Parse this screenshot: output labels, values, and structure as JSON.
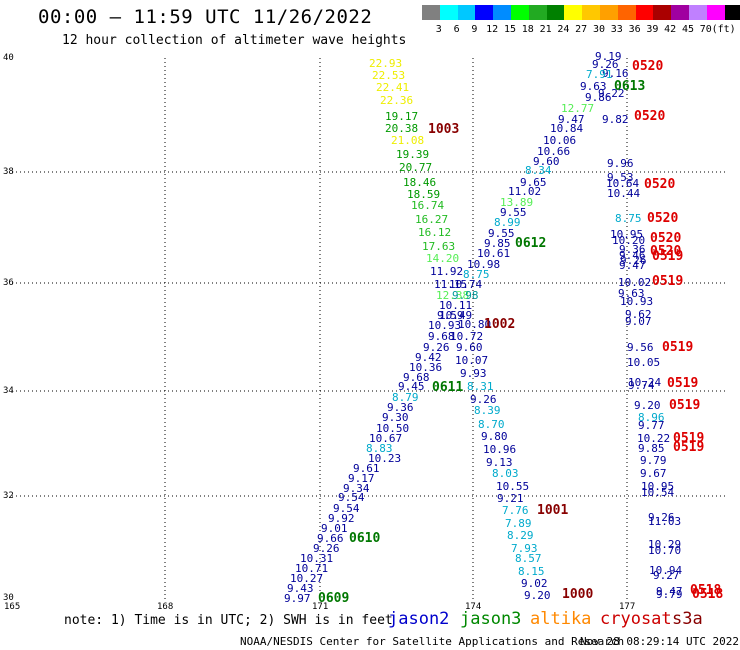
{
  "title": "00:00 — 11:59 UTC 11/26/2022",
  "subtitle": "12 hour collection of altimeter wave heights",
  "colorbar": {
    "colors": [
      "#808080",
      "#00ffff",
      "#00c8ff",
      "#0000ff",
      "#008cff",
      "#00ff00",
      "#22aa22",
      "#008000",
      "#ffff00",
      "#ffc800",
      "#ffa000",
      "#ff6400",
      "#ff0000",
      "#aa0000",
      "#a000a0",
      "#c080ff",
      "#ff00ff",
      "#000000"
    ],
    "labels": [
      "3",
      "6",
      "9",
      "12",
      "15",
      "18",
      "21",
      "24",
      "27",
      "30",
      "33",
      "36",
      "39",
      "42",
      "45",
      "70",
      "(ft)"
    ]
  },
  "axes": {
    "lat_labels": [
      "40",
      "38",
      "36",
      "34",
      "32",
      "30"
    ],
    "lon_labels": [
      "165",
      "168",
      "171",
      "174",
      "177"
    ]
  },
  "swh_values": [
    {
      "text": "22.93",
      "color": "#eeee00"
    },
    {
      "text": "22.53",
      "color": "#eeee00"
    },
    {
      "text": "22.41",
      "color": "#eeee00"
    },
    {
      "text": "22.36",
      "color": "#eeee00"
    },
    {
      "text": "19.17",
      "color": "#009900"
    },
    {
      "text": "20.38",
      "color": "#009900"
    },
    {
      "text": "21.08",
      "color": "#eeee00"
    },
    {
      "text": "19.39",
      "color": "#009900"
    },
    {
      "text": "20.77",
      "color": "#009900"
    },
    {
      "text": "18.46",
      "color": "#009900"
    },
    {
      "text": "18.59",
      "color": "#009900"
    },
    {
      "text": "16.74",
      "color": "#22bb22"
    },
    {
      "text": "16.27",
      "color": "#22bb22"
    },
    {
      "text": "16.12",
      "color": "#22bb22"
    },
    {
      "text": "17.63",
      "color": "#22bb22"
    },
    {
      "text": "14.20",
      "color": "#55ee55"
    },
    {
      "text": "11.92",
      "color": "#000099"
    },
    {
      "text": "11.15",
      "color": "#000099"
    },
    {
      "text": "10.74",
      "color": "#000099"
    },
    {
      "text": "12.38",
      "color": "#55ee55"
    },
    {
      "text": "9.98",
      "color": "#009999"
    },
    {
      "text": "10.11",
      "color": "#000099"
    },
    {
      "text": "10.49",
      "color": "#000099"
    },
    {
      "text": "10.80",
      "color": "#000099"
    },
    {
      "text": "10.93",
      "color": "#000099"
    },
    {
      "text": "9.59",
      "color": "#000099"
    },
    {
      "text": "9.68",
      "color": "#000099"
    },
    {
      "text": "10.72",
      "color": "#000099"
    },
    {
      "text": "9.26",
      "color": "#000099"
    },
    {
      "text": "9.60",
      "color": "#000099"
    },
    {
      "text": "9.42",
      "color": "#000099"
    },
    {
      "text": "10.07",
      "color": "#000099"
    },
    {
      "text": "10.36",
      "color": "#000099"
    },
    {
      "text": "9.93",
      "color": "#000099"
    },
    {
      "text": "9.68",
      "color": "#000099"
    },
    {
      "text": "9.45",
      "color": "#000099"
    },
    {
      "text": "8.31",
      "color": "#00aacc"
    },
    {
      "text": "8.79",
      "color": "#00aacc"
    },
    {
      "text": "9.26",
      "color": "#000099"
    },
    {
      "text": "9.36",
      "color": "#000099"
    },
    {
      "text": "8.39",
      "color": "#00aacc"
    },
    {
      "text": "9.30",
      "color": "#000099"
    },
    {
      "text": "8.70",
      "color": "#00aacc"
    },
    {
      "text": "10.50",
      "color": "#000099"
    },
    {
      "text": "10.67",
      "color": "#000099"
    },
    {
      "text": "9.80",
      "color": "#000099"
    },
    {
      "text": "8.83",
      "color": "#00aacc"
    },
    {
      "text": "10.96",
      "color": "#000099"
    },
    {
      "text": "10.23",
      "color": "#000099"
    },
    {
      "text": "9.13",
      "color": "#000099"
    },
    {
      "text": "9.61",
      "color": "#000099"
    },
    {
      "text": "9.17",
      "color": "#000099"
    },
    {
      "text": "8.03",
      "color": "#00aacc"
    },
    {
      "text": "9.34",
      "color": "#000099"
    },
    {
      "text": "10.55",
      "color": "#000099"
    },
    {
      "text": "9.54",
      "color": "#000099"
    },
    {
      "text": "9.21",
      "color": "#000099"
    },
    {
      "text": "9.54",
      "color": "#000099"
    },
    {
      "text": "7.76",
      "color": "#00aacc"
    },
    {
      "text": "9.92",
      "color": "#000099"
    },
    {
      "text": "7.89",
      "color": "#00aacc"
    },
    {
      "text": "9.01",
      "color": "#000099"
    },
    {
      "text": "8.29",
      "color": "#00aacc"
    },
    {
      "text": "9.66",
      "color": "#000099"
    },
    {
      "text": "9.26",
      "color": "#000099"
    },
    {
      "text": "7.93",
      "color": "#00aacc"
    },
    {
      "text": "10.31",
      "color": "#000099"
    },
    {
      "text": "8.57",
      "color": "#00aacc"
    },
    {
      "text": "10.71",
      "color": "#000099"
    },
    {
      "text": "8.15",
      "color": "#00aacc"
    },
    {
      "text": "10.27",
      "color": "#000099"
    },
    {
      "text": "9.02",
      "color": "#000099"
    },
    {
      "text": "9.43",
      "color": "#000099"
    },
    {
      "text": "9.20",
      "color": "#000099"
    },
    {
      "text": "9.97",
      "color": "#000099"
    },
    {
      "text": "9.19",
      "color": "#000099"
    },
    {
      "text": "9.26",
      "color": "#000099"
    },
    {
      "text": "9.16",
      "color": "#000099"
    },
    {
      "text": "7.91",
      "color": "#00aacc"
    },
    {
      "text": "9.63",
      "color": "#000099"
    },
    {
      "text": "9.22",
      "color": "#000099"
    },
    {
      "text": "9.86",
      "color": "#000099"
    },
    {
      "text": "12.77",
      "color": "#55ee55"
    },
    {
      "text": "9.47",
      "color": "#000099"
    },
    {
      "text": "9.82",
      "color": "#000099"
    },
    {
      "text": "10.84",
      "color": "#000099"
    },
    {
      "text": "10.06",
      "color": "#000099"
    },
    {
      "text": "10.66",
      "color": "#000099"
    },
    {
      "text": "9.60",
      "color": "#000099"
    },
    {
      "text": "8.34",
      "color": "#00aacc"
    },
    {
      "text": "9.65",
      "color": "#000099"
    },
    {
      "text": "11.02",
      "color": "#000099"
    },
    {
      "text": "13.89",
      "color": "#55ee55"
    },
    {
      "text": "9.55",
      "color": "#000099"
    },
    {
      "text": "8.99",
      "color": "#00aacc"
    },
    {
      "text": "9.55",
      "color": "#000099"
    },
    {
      "text": "9.85",
      "color": "#000099"
    },
    {
      "text": "10.61",
      "color": "#000099"
    },
    {
      "text": "10.98",
      "color": "#000099"
    },
    {
      "text": "8.75",
      "color": "#00aacc"
    },
    {
      "text": "9.96",
      "color": "#000099"
    },
    {
      "text": "9.53",
      "color": "#000099"
    },
    {
      "text": "10.64",
      "color": "#000099"
    },
    {
      "text": "10.44",
      "color": "#000099"
    },
    {
      "text": "8.75",
      "color": "#00aacc"
    },
    {
      "text": "10.95",
      "color": "#000099"
    },
    {
      "text": "10.20",
      "color": "#000099"
    },
    {
      "text": "9.36",
      "color": "#000099"
    },
    {
      "text": "9.46",
      "color": "#000099"
    },
    {
      "text": "9.26",
      "color": "#000099"
    },
    {
      "text": "9.47",
      "color": "#000099"
    },
    {
      "text": "10.02",
      "color": "#000099"
    },
    {
      "text": "9.63",
      "color": "#000099"
    },
    {
      "text": "10.93",
      "color": "#000099"
    },
    {
      "text": "9.62",
      "color": "#000099"
    },
    {
      "text": "9.07",
      "color": "#000099"
    },
    {
      "text": "9.56",
      "color": "#000099"
    },
    {
      "text": "10.05",
      "color": "#000099"
    },
    {
      "text": "10.24",
      "color": "#000099"
    },
    {
      "text": "9.74",
      "color": "#000099"
    },
    {
      "text": "9.20",
      "color": "#000099"
    },
    {
      "text": "8.96",
      "color": "#00aacc"
    },
    {
      "text": "9.77",
      "color": "#000099"
    },
    {
      "text": "10.22",
      "color": "#000099"
    },
    {
      "text": "9.85",
      "color": "#000099"
    },
    {
      "text": "9.79",
      "color": "#000099"
    },
    {
      "text": "9.67",
      "color": "#000099"
    },
    {
      "text": "10.95",
      "color": "#000099"
    },
    {
      "text": "10.54",
      "color": "#000099"
    },
    {
      "text": "9.26",
      "color": "#000099"
    },
    {
      "text": "11.03",
      "color": "#000099"
    },
    {
      "text": "10.29",
      "color": "#000099"
    },
    {
      "text": "10.70",
      "color": "#000099"
    },
    {
      "text": "10.94",
      "color": "#000099"
    },
    {
      "text": "9.27",
      "color": "#000099"
    },
    {
      "text": "9.47",
      "color": "#000099"
    },
    {
      "text": "9.79",
      "color": "#000099"
    }
  ],
  "time_labels": [
    {
      "text": "0520",
      "color": "#dd0000"
    },
    {
      "text": "0613",
      "color": "#007700"
    },
    {
      "text": "0520",
      "color": "#dd0000"
    },
    {
      "text": "1003",
      "color": "#880000"
    },
    {
      "text": "0520",
      "color": "#dd0000"
    },
    {
      "text": "0520",
      "color": "#dd0000"
    },
    {
      "text": "0612",
      "color": "#007700"
    },
    {
      "text": "0520",
      "color": "#dd0000"
    },
    {
      "text": "0520",
      "color": "#dd0000"
    },
    {
      "text": "0519",
      "color": "#dd0000"
    },
    {
      "text": "0519",
      "color": "#dd0000"
    },
    {
      "text": "1002",
      "color": "#880000"
    },
    {
      "text": "0519",
      "color": "#dd0000"
    },
    {
      "text": "0611",
      "color": "#007700"
    },
    {
      "text": "0519",
      "color": "#dd0000"
    },
    {
      "text": "0519",
      "color": "#dd0000"
    },
    {
      "text": "0519",
      "color": "#dd0000"
    },
    {
      "text": "0519",
      "color": "#dd0000"
    },
    {
      "text": "1001",
      "color": "#880000"
    },
    {
      "text": "0610",
      "color": "#007700"
    },
    {
      "text": "1000",
      "color": "#880000"
    },
    {
      "text": "0609",
      "color": "#007700"
    },
    {
      "text": "0518",
      "color": "#dd0000"
    },
    {
      "text": "0518",
      "color": "#dd0000"
    }
  ],
  "note": "note: 1) Time is in UTC; 2) SWH is in feet",
  "satellites": [
    {
      "name": "jason2",
      "color": "#0000cc"
    },
    {
      "name": "jason3",
      "color": "#008800"
    },
    {
      "name": "altika",
      "color": "#ff8800"
    },
    {
      "name": "cryosat",
      "color": "#cc0000"
    },
    {
      "name": "s3a",
      "color": "#880000"
    }
  ],
  "credit": "NOAA/NESDIS Center for Satellite Applications and Research",
  "timestamp": "Nov 28 08:29:14 UTC 2022"
}
